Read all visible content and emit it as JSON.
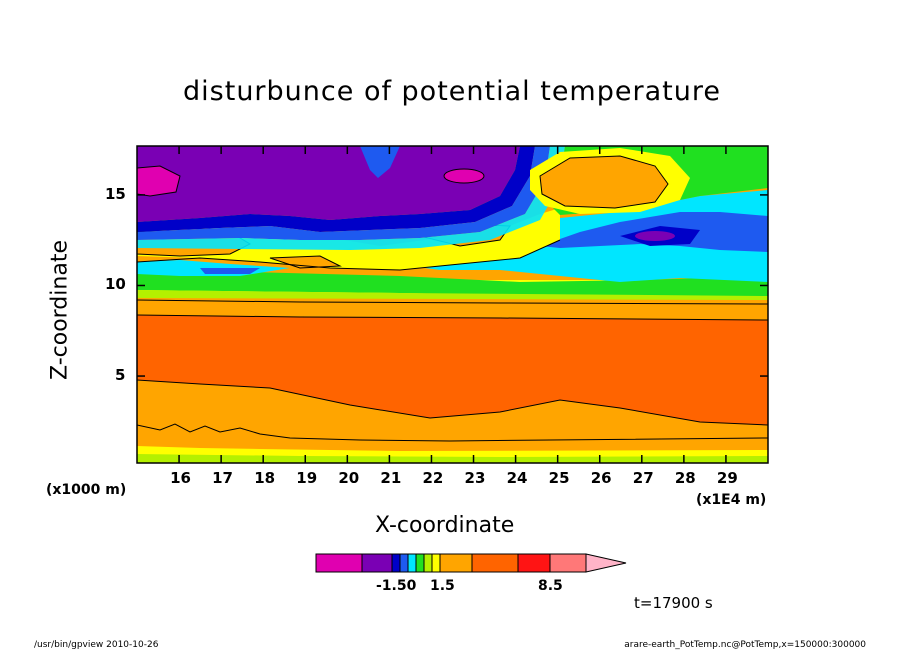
{
  "title": "disturbunce of potential temperature",
  "xlabel": "X-coordinate",
  "ylabel": "Z-coordinate",
  "x_unit_left": "(x1000 m)",
  "x_unit_right": "(x1E4 m)",
  "time_label": "t=17900 s",
  "footer_left": "/usr/bin/gpview   2010-10-26",
  "footer_right": "arare-earth_PotTemp.nc@PotTemp,x=150000:300000",
  "chart_data": {
    "type": "heatmap",
    "title": "disturbunce of potential temperature",
    "xlabel": "X-coordinate",
    "ylabel": "Z-coordinate",
    "x_ticks": [
      "16",
      "17",
      "18",
      "19",
      "20",
      "21",
      "22",
      "23",
      "24",
      "25",
      "26",
      "27",
      "28",
      "29"
    ],
    "x_tick_values": [
      16,
      17,
      18,
      19,
      20,
      21,
      22,
      23,
      24,
      25,
      26,
      27,
      28,
      29
    ],
    "y_ticks": [
      "5",
      "10",
      "15"
    ],
    "y_tick_values": [
      5,
      10,
      15
    ],
    "xlim": [
      15,
      30
    ],
    "ylim": [
      0.2,
      17.7
    ],
    "colorbar": {
      "labels": [
        "-1.50",
        "1.5",
        "8.5"
      ],
      "colors": [
        "#e000b0",
        "#7a00b4",
        "#0000c8",
        "#1e5af0",
        "#00e6ff",
        "#20e020",
        "#b4f000",
        "#ffff00",
        "#ffa500",
        "#ff6400",
        "#ff1414",
        "#ff7878",
        "#ffb4c8"
      ]
    },
    "layers": [
      {
        "level": "very low",
        "color": "#7a00b4",
        "note": "upper band z≈13.5–17.5 (x 15–24)"
      },
      {
        "level": "lowest",
        "color": "#e000b0",
        "note": "pockets near x≈15.5 z≈16 and x≈23 z≈16.5"
      },
      {
        "level": "high",
        "color": "#ff6400",
        "note": "main band z≈3–8"
      },
      {
        "level": "medium-high",
        "color": "#ffa500",
        "note": "bands z≈1–3 and 8–10; blob at x≈25.5 z≈16"
      },
      {
        "level": "low",
        "color": "#00e6ff",
        "note": "right region z≈10.5–14"
      },
      {
        "level": "lower",
        "color": "#1e5af0",
        "note": "right region z≈11.8–13.2"
      }
    ]
  }
}
